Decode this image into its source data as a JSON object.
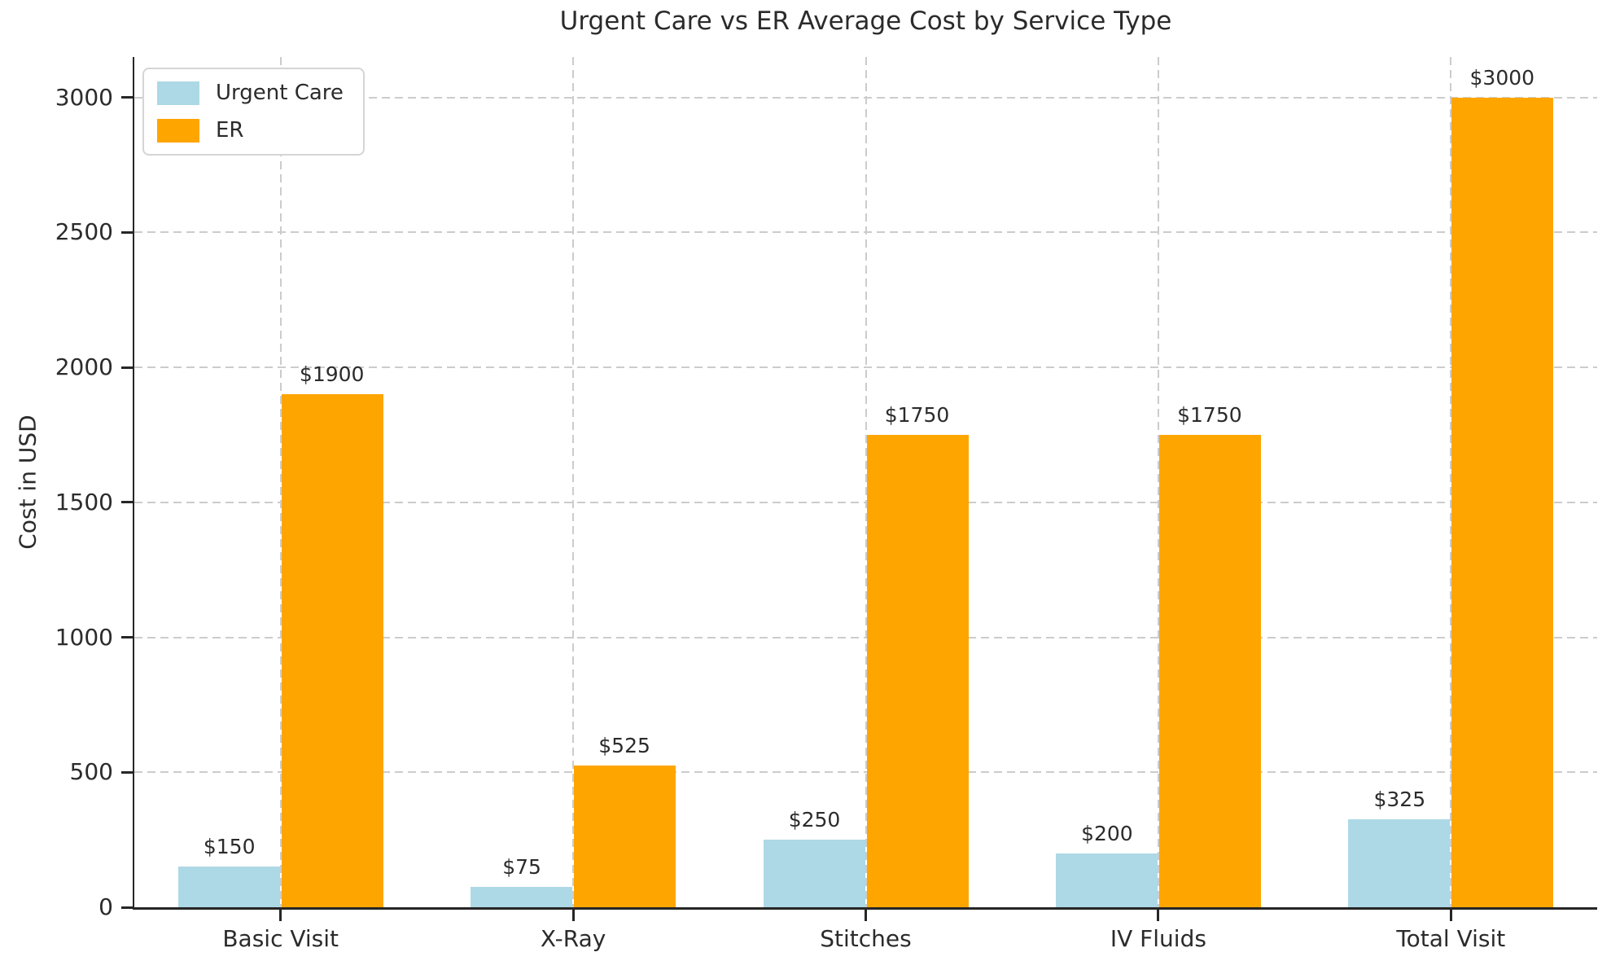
{
  "chart_data": {
    "type": "bar",
    "title": "Urgent Care vs ER Average Cost by Service Type",
    "xlabel": "",
    "ylabel": "Cost in USD",
    "categories": [
      "Basic Visit",
      "X-Ray",
      "Stitches",
      "IV Fluids",
      "Total Visit"
    ],
    "series": [
      {
        "name": "Urgent Care",
        "color": "#ADD8E6",
        "values": [
          150,
          75,
          250,
          200,
          325
        ]
      },
      {
        "name": "ER",
        "color": "#FFA500",
        "values": [
          1900,
          525,
          1750,
          1750,
          3000
        ]
      }
    ],
    "bar_labels": [
      [
        "$150",
        "$75",
        "$250",
        "$200",
        "$325"
      ],
      [
        "$1900",
        "$525",
        "$1750",
        "$1750",
        "$3000"
      ]
    ],
    "ylim": [
      0,
      3150
    ],
    "yticks": [
      0,
      500,
      1000,
      1500,
      2000,
      2500,
      3000
    ],
    "grid": true,
    "legend_position": "upper left",
    "styles": {
      "text_color": "#2b2b2b",
      "spine_color": "#262626",
      "grid_color": "#cccccc",
      "background": "#ffffff"
    }
  }
}
